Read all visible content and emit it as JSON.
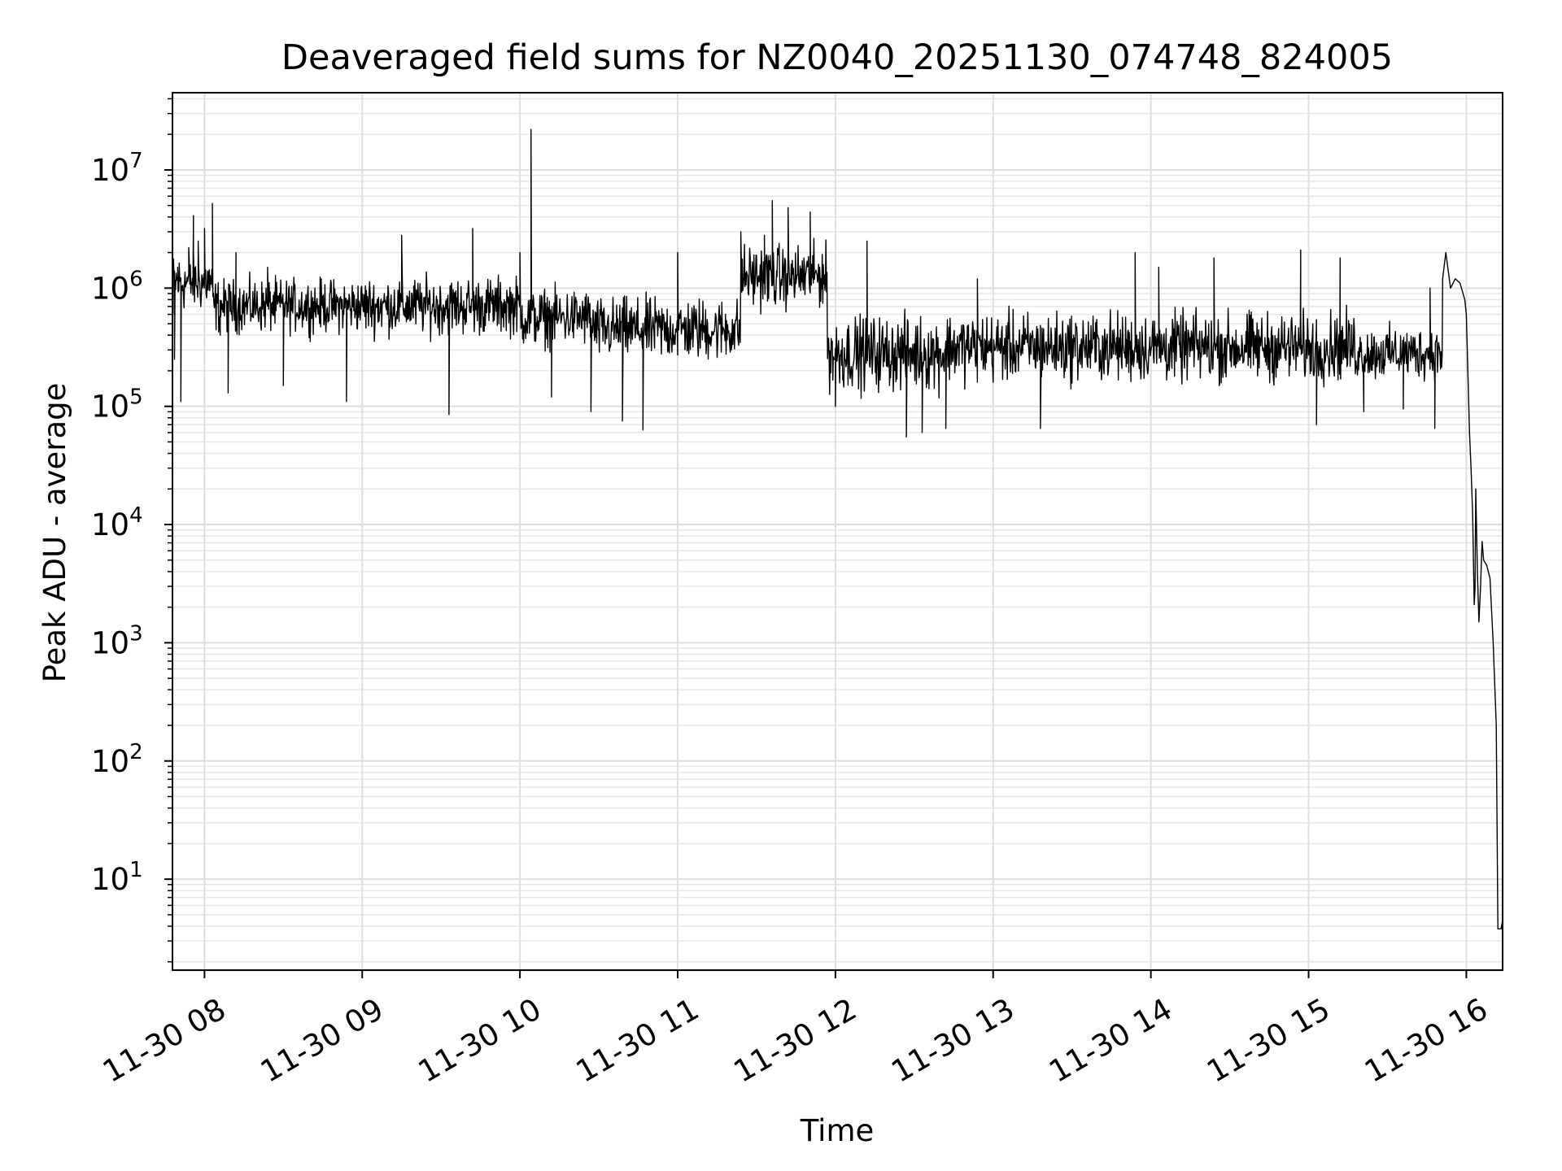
{
  "chart_data": {
    "type": "line",
    "title": "Deaveraged field sums for NZ0040_20251130_074748_824005",
    "xlabel": "Time",
    "ylabel": "Peak ADU - average",
    "yscale": "log",
    "grid": true,
    "x_start_hours": 7.797,
    "x_end_hours": 16.23,
    "ylim": [
      1.7,
      45000000
    ],
    "x_ticks": [
      {
        "hour": 8,
        "label": "11-30 08"
      },
      {
        "hour": 9,
        "label": "11-30 09"
      },
      {
        "hour": 10,
        "label": "11-30 10"
      },
      {
        "hour": 11,
        "label": "11-30 11"
      },
      {
        "hour": 12,
        "label": "11-30 12"
      },
      {
        "hour": 13,
        "label": "11-30 13"
      },
      {
        "hour": 14,
        "label": "11-30 14"
      },
      {
        "hour": 15,
        "label": "11-30 15"
      },
      {
        "hour": 16,
        "label": "11-30 16"
      }
    ],
    "y_ticks": [
      {
        "exp": 1,
        "base": "10",
        "sup": "1"
      },
      {
        "exp": 2,
        "base": "10",
        "sup": "2"
      },
      {
        "exp": 3,
        "base": "10",
        "sup": "3"
      },
      {
        "exp": 4,
        "base": "10",
        "sup": "4"
      },
      {
        "exp": 5,
        "base": "10",
        "sup": "5"
      },
      {
        "exp": 6,
        "base": "10",
        "sup": "6"
      },
      {
        "exp": 7,
        "base": "10",
        "sup": "7"
      }
    ],
    "series": [
      {
        "name": "deaveraged field sum",
        "color": "#000000",
        "noise_segments": [
          {
            "x0": 7.8,
            "x1": 8.05,
            "log_center": 6.05,
            "log_amp": 0.35
          },
          {
            "x0": 8.05,
            "x1": 9.0,
            "log_center": 5.85,
            "log_amp": 0.32
          },
          {
            "x0": 9.0,
            "x1": 10.0,
            "log_center": 5.85,
            "log_amp": 0.35
          },
          {
            "x0": 10.0,
            "x1": 10.45,
            "log_center": 5.75,
            "log_amp": 0.35
          },
          {
            "x0": 10.45,
            "x1": 11.4,
            "log_center": 5.65,
            "log_amp": 0.38
          },
          {
            "x0": 11.4,
            "x1": 11.95,
            "log_center": 6.1,
            "log_amp": 0.38
          },
          {
            "x0": 11.95,
            "x1": 12.7,
            "log_center": 5.45,
            "log_amp": 0.45
          },
          {
            "x0": 12.7,
            "x1": 15.3,
            "log_center": 5.5,
            "log_amp": 0.42
          },
          {
            "x0": 15.3,
            "x1": 15.85,
            "log_center": 5.45,
            "log_amp": 0.32
          }
        ],
        "points": [
          [
            7.8,
            600000
          ],
          [
            7.81,
            250000
          ],
          [
            7.83,
            1500000
          ],
          [
            7.85,
            110000
          ],
          [
            7.9,
            2200000
          ],
          [
            7.93,
            4100000
          ],
          [
            7.96,
            2500000
          ],
          [
            8.0,
            3200000
          ],
          [
            8.05,
            5200000
          ],
          [
            8.1,
            400000
          ],
          [
            8.15,
            130000
          ],
          [
            8.2,
            2000000
          ],
          [
            8.4,
            1500000
          ],
          [
            8.5,
            150000
          ],
          [
            8.9,
            110000
          ],
          [
            9.25,
            2800000
          ],
          [
            9.55,
            85000
          ],
          [
            9.7,
            3200000
          ],
          [
            10.0,
            2000000
          ],
          [
            10.04,
            500000
          ],
          [
            10.07,
            22000000
          ],
          [
            10.09,
            600000
          ],
          [
            10.2,
            120000
          ],
          [
            10.45,
            90000
          ],
          [
            10.65,
            75000
          ],
          [
            10.78,
            63000
          ],
          [
            11.0,
            2000000
          ],
          [
            11.4,
            3000000
          ],
          [
            11.55,
            2800000
          ],
          [
            11.6,
            5500000
          ],
          [
            11.7,
            4800000
          ],
          [
            11.8,
            1800000
          ],
          [
            11.84,
            4400000
          ],
          [
            11.9,
            1500000
          ],
          [
            12.0,
            100000
          ],
          [
            12.2,
            2500000
          ],
          [
            12.45,
            55000
          ],
          [
            12.55,
            60000
          ],
          [
            12.7,
            65000
          ],
          [
            12.9,
            1200000
          ],
          [
            13.3,
            65000
          ],
          [
            13.9,
            2000000
          ],
          [
            14.05,
            1500000
          ],
          [
            14.4,
            1800000
          ],
          [
            14.95,
            2100000
          ],
          [
            15.05,
            70000
          ],
          [
            15.2,
            1800000
          ],
          [
            15.35,
            90000
          ],
          [
            15.6,
            95000
          ],
          [
            15.77,
            1000000
          ],
          [
            15.8,
            65000
          ],
          [
            15.85,
            1200000
          ],
          [
            15.87,
            2000000
          ],
          [
            15.9,
            1000000
          ],
          [
            15.93,
            1200000
          ],
          [
            15.96,
            1100000
          ],
          [
            15.99,
            800000
          ],
          [
            16.0,
            600000
          ],
          [
            16.02,
            60000
          ],
          [
            16.03,
            30000
          ],
          [
            16.04,
            12000
          ],
          [
            16.05,
            2100
          ],
          [
            16.055,
            2900
          ],
          [
            16.06,
            20000
          ],
          [
            16.07,
            4000
          ],
          [
            16.08,
            1500
          ],
          [
            16.09,
            3000
          ],
          [
            16.1,
            7200
          ],
          [
            16.11,
            5000
          ],
          [
            16.13,
            4500
          ],
          [
            16.15,
            3500
          ],
          [
            16.17,
            1000
          ],
          [
            16.19,
            200
          ],
          [
            16.2,
            3.8
          ],
          [
            16.22,
            3.8
          ],
          [
            16.23,
            4.5
          ]
        ]
      }
    ]
  }
}
